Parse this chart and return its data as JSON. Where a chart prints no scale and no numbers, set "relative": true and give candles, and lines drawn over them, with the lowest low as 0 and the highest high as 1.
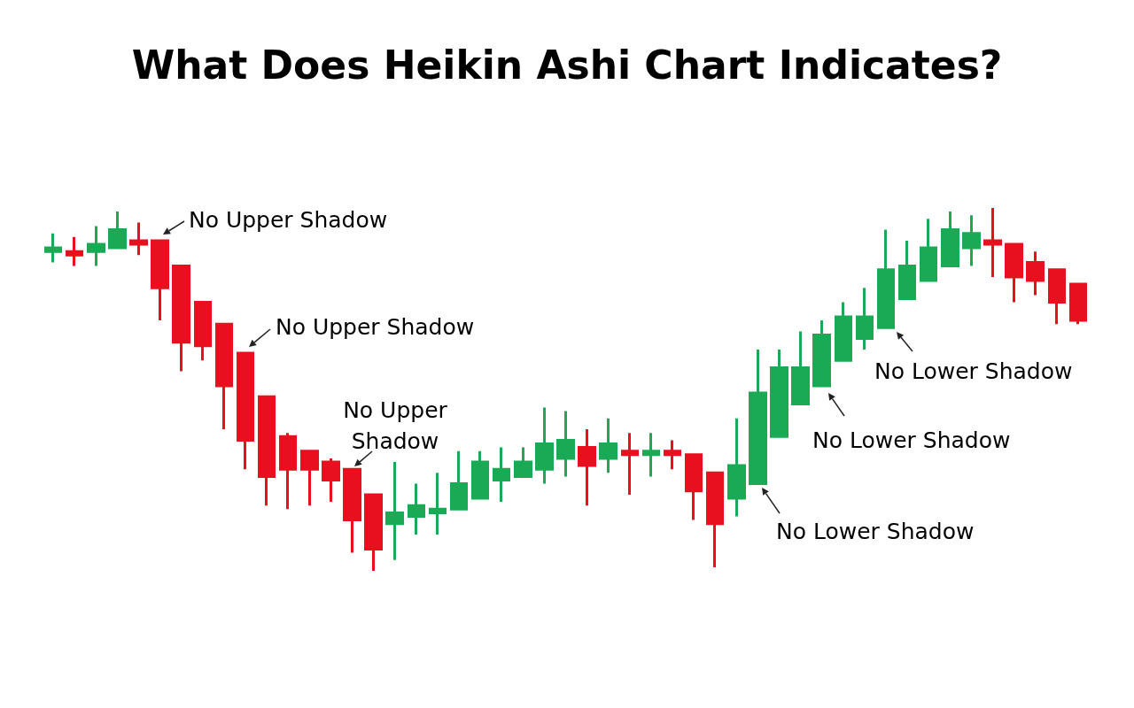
{
  "chart_data": {
    "type": "candlestick",
    "title": "What Does Heikin Ashi Chart Indicates?",
    "relative": true,
    "categories": [
      null,
      null,
      null,
      null,
      null,
      null,
      null,
      null,
      null,
      null,
      null,
      null,
      null,
      null,
      null,
      null,
      null,
      null,
      null,
      null,
      null,
      null,
      null,
      null,
      null,
      null,
      null,
      null,
      null,
      null,
      null,
      null,
      null,
      null,
      null,
      null,
      null,
      null,
      null,
      null,
      null,
      null,
      null,
      null,
      null,
      null,
      null,
      null,
      null
    ],
    "ohlc": [
      [
        0.88,
        0.93,
        0.85,
        0.89
      ],
      [
        0.88,
        0.92,
        0.84,
        0.87
      ],
      [
        0.88,
        0.95,
        0.84,
        0.9
      ],
      [
        0.89,
        0.99,
        0.89,
        0.94
      ],
      [
        0.91,
        0.96,
        0.87,
        0.9
      ],
      [
        0.91,
        0.91,
        0.69,
        0.78
      ],
      [
        0.84,
        0.84,
        0.55,
        0.63
      ],
      [
        0.74,
        0.74,
        0.58,
        0.62
      ],
      [
        0.68,
        0.68,
        0.39,
        0.51
      ],
      [
        0.6,
        0.6,
        0.28,
        0.36
      ],
      [
        0.48,
        0.48,
        0.18,
        0.26
      ],
      [
        0.37,
        0.38,
        0.17,
        0.28
      ],
      [
        0.33,
        0.33,
        0.18,
        0.28
      ],
      [
        0.3,
        0.31,
        0.19,
        0.25
      ],
      [
        0.28,
        0.28,
        0.05,
        0.14
      ],
      [
        0.21,
        0.21,
        0,
        0.06
      ],
      [
        0.13,
        0.3,
        0.03,
        0.16
      ],
      [
        0.15,
        0.24,
        0.1,
        0.18
      ],
      [
        0.16,
        0.27,
        0.1,
        0.17
      ],
      [
        0.17,
        0.33,
        0.17,
        0.24
      ],
      [
        0.2,
        0.33,
        0.2,
        0.3
      ],
      [
        0.25,
        0.34,
        0.19,
        0.28
      ],
      [
        0.26,
        0.34,
        0.26,
        0.3
      ],
      [
        0.28,
        0.45,
        0.24,
        0.35
      ],
      [
        0.31,
        0.44,
        0.26,
        0.36
      ],
      [
        0.34,
        0.39,
        0.18,
        0.29
      ],
      [
        0.31,
        0.42,
        0.27,
        0.35
      ],
      [
        0.33,
        0.38,
        0.21,
        0.32
      ],
      [
        0.32,
        0.38,
        0.26,
        0.33
      ],
      [
        0.33,
        0.36,
        0.28,
        0.32
      ],
      [
        0.32,
        0.32,
        0.14,
        0.22
      ],
      [
        0.27,
        0.27,
        0.01,
        0.13
      ],
      [
        0.2,
        0.42,
        0.15,
        0.29
      ],
      [
        0.24,
        0.61,
        0.24,
        0.49
      ],
      [
        0.37,
        0.61,
        0.37,
        0.56
      ],
      [
        0.46,
        0.66,
        0.46,
        0.56
      ],
      [
        0.51,
        0.69,
        0.51,
        0.65
      ],
      [
        0.58,
        0.74,
        0.58,
        0.7
      ],
      [
        0.64,
        0.78,
        0.61,
        0.7
      ],
      [
        0.67,
        0.94,
        0.67,
        0.83
      ],
      [
        0.75,
        0.91,
        0.75,
        0.84
      ],
      [
        0.8,
        0.97,
        0.8,
        0.89
      ],
      [
        0.84,
        0.99,
        0.84,
        0.94
      ],
      [
        0.89,
        0.98,
        0.84,
        0.93
      ],
      [
        0.91,
        1,
        0.81,
        0.9
      ],
      [
        0.9,
        0.9,
        0.74,
        0.81
      ],
      [
        0.85,
        0.88,
        0.76,
        0.8
      ],
      [
        0.83,
        0.83,
        0.68,
        0.74
      ],
      [
        0.79,
        0.79,
        0.68,
        0.69
      ]
    ],
    "colors": [
      "#1aaa55",
      "#e8101e",
      "#1aaa55",
      "#1aaa55",
      "#e8101e",
      "#e8101e",
      "#e8101e",
      "#e8101e",
      "#e8101e",
      "#e8101e",
      "#e8101e",
      "#e8101e",
      "#e8101e",
      "#e8101e",
      "#e8101e",
      "#e8101e",
      "#1aaa55",
      "#1aaa55",
      "#1aaa55",
      "#1aaa55",
      "#1aaa55",
      "#1aaa55",
      "#1aaa55",
      "#1aaa55",
      "#1aaa55",
      "#e8101e",
      "#1aaa55",
      "#e8101e",
      "#1aaa55",
      "#e8101e",
      "#e8101e",
      "#e8101e",
      "#1aaa55",
      "#1aaa55",
      "#1aaa55",
      "#1aaa55",
      "#1aaa55",
      "#1aaa55",
      "#1aaa55",
      "#1aaa55",
      "#1aaa55",
      "#1aaa55",
      "#1aaa55",
      "#1aaa55",
      "#e8101e",
      "#e8101e",
      "#e8101e",
      "#e8101e",
      "#e8101e"
    ],
    "annotations": [
      "No Upper Shadow",
      "No Upper Shadow",
      "No Upper Shadow",
      "No Lower Shadow",
      "No Lower Shadow",
      "No Lower Shadow"
    ],
    "grid": false
  }
}
